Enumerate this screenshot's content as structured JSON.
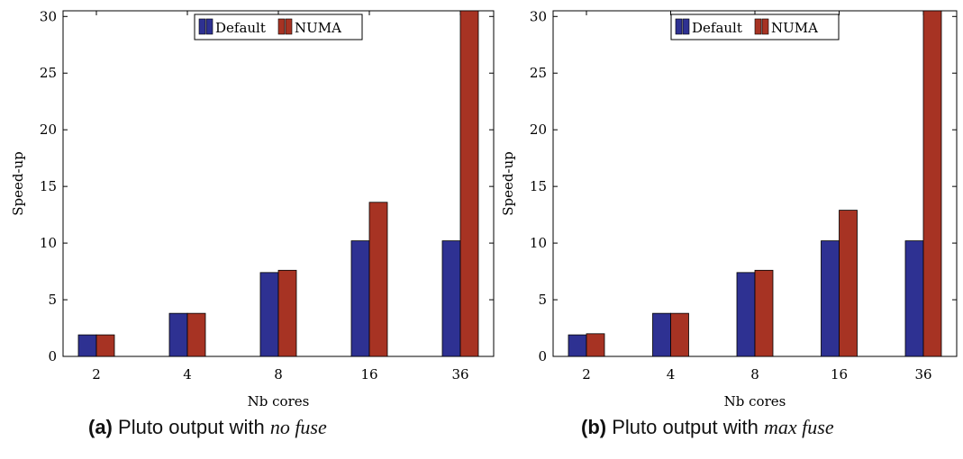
{
  "colors": {
    "default": "#2e3192",
    "numa": "#a73323"
  },
  "charts": [
    {
      "chart_data": {
        "type": "bar",
        "categories": [
          "2",
          "4",
          "8",
          "16",
          "36"
        ],
        "series": [
          {
            "name": "Default",
            "values": [
              1.9,
              3.8,
              7.4,
              10.2,
              10.2
            ]
          },
          {
            "name": "NUMA",
            "values": [
              1.9,
              3.8,
              7.6,
              13.6,
              30.5
            ]
          }
        ],
        "xlabel": "Nb cores",
        "ylabel": "Speed-up",
        "ylim": [
          0,
          30.5
        ],
        "yticks": [
          0,
          5,
          10,
          15,
          20,
          25,
          30
        ],
        "legend": "top-center",
        "grid": false
      },
      "caption": {
        "label": "(a)",
        "text": "Pluto output with",
        "emph": "no fuse"
      }
    },
    {
      "chart_data": {
        "type": "bar",
        "categories": [
          "2",
          "4",
          "8",
          "16",
          "36"
        ],
        "series": [
          {
            "name": "Default",
            "values": [
              1.9,
              3.8,
              7.4,
              10.2,
              10.2
            ]
          },
          {
            "name": "NUMA",
            "values": [
              2.0,
              3.8,
              7.6,
              12.9,
              30.5
            ]
          }
        ],
        "xlabel": "Nb cores",
        "ylabel": "Speed-up",
        "ylim": [
          0,
          30.5
        ],
        "yticks": [
          0,
          5,
          10,
          15,
          20,
          25,
          30
        ],
        "legend": "top-center",
        "grid": false
      },
      "caption": {
        "label": "(b)",
        "text": "Pluto output with",
        "emph": "max fuse"
      }
    }
  ]
}
